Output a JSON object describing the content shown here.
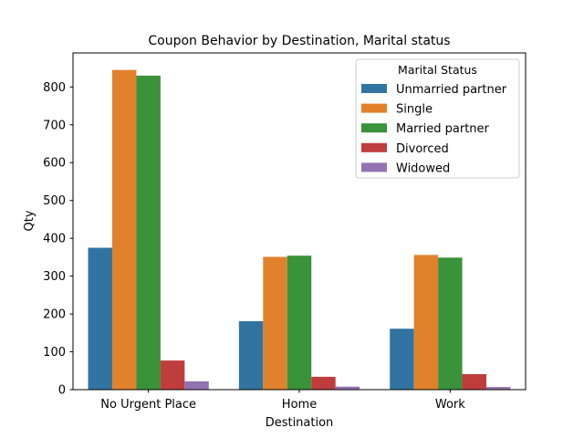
{
  "chart_data": {
    "type": "bar",
    "title": "Coupon Behavior by Destination, Marital status",
    "xlabel": "Destination",
    "ylabel": "Qty",
    "categories": [
      "No Urgent Place",
      "Home",
      "Work"
    ],
    "ylim": [
      0,
      890
    ],
    "yticks": [
      0,
      100,
      200,
      300,
      400,
      500,
      600,
      700,
      800
    ],
    "grid": false,
    "legend": {
      "title": "Marital Status",
      "placement": "top-right"
    },
    "series": [
      {
        "name": "Unmarried partner",
        "color": "#3274a1",
        "values": [
          375,
          181,
          161
        ]
      },
      {
        "name": "Single",
        "color": "#e1812c",
        "values": [
          845,
          351,
          356
        ]
      },
      {
        "name": "Married partner",
        "color": "#3a923a",
        "values": [
          830,
          354,
          349
        ]
      },
      {
        "name": "Divorced",
        "color": "#c03d3e",
        "values": [
          77,
          34,
          41
        ]
      },
      {
        "name": "Widowed",
        "color": "#9372b2",
        "values": [
          22,
          8,
          7
        ]
      }
    ]
  }
}
